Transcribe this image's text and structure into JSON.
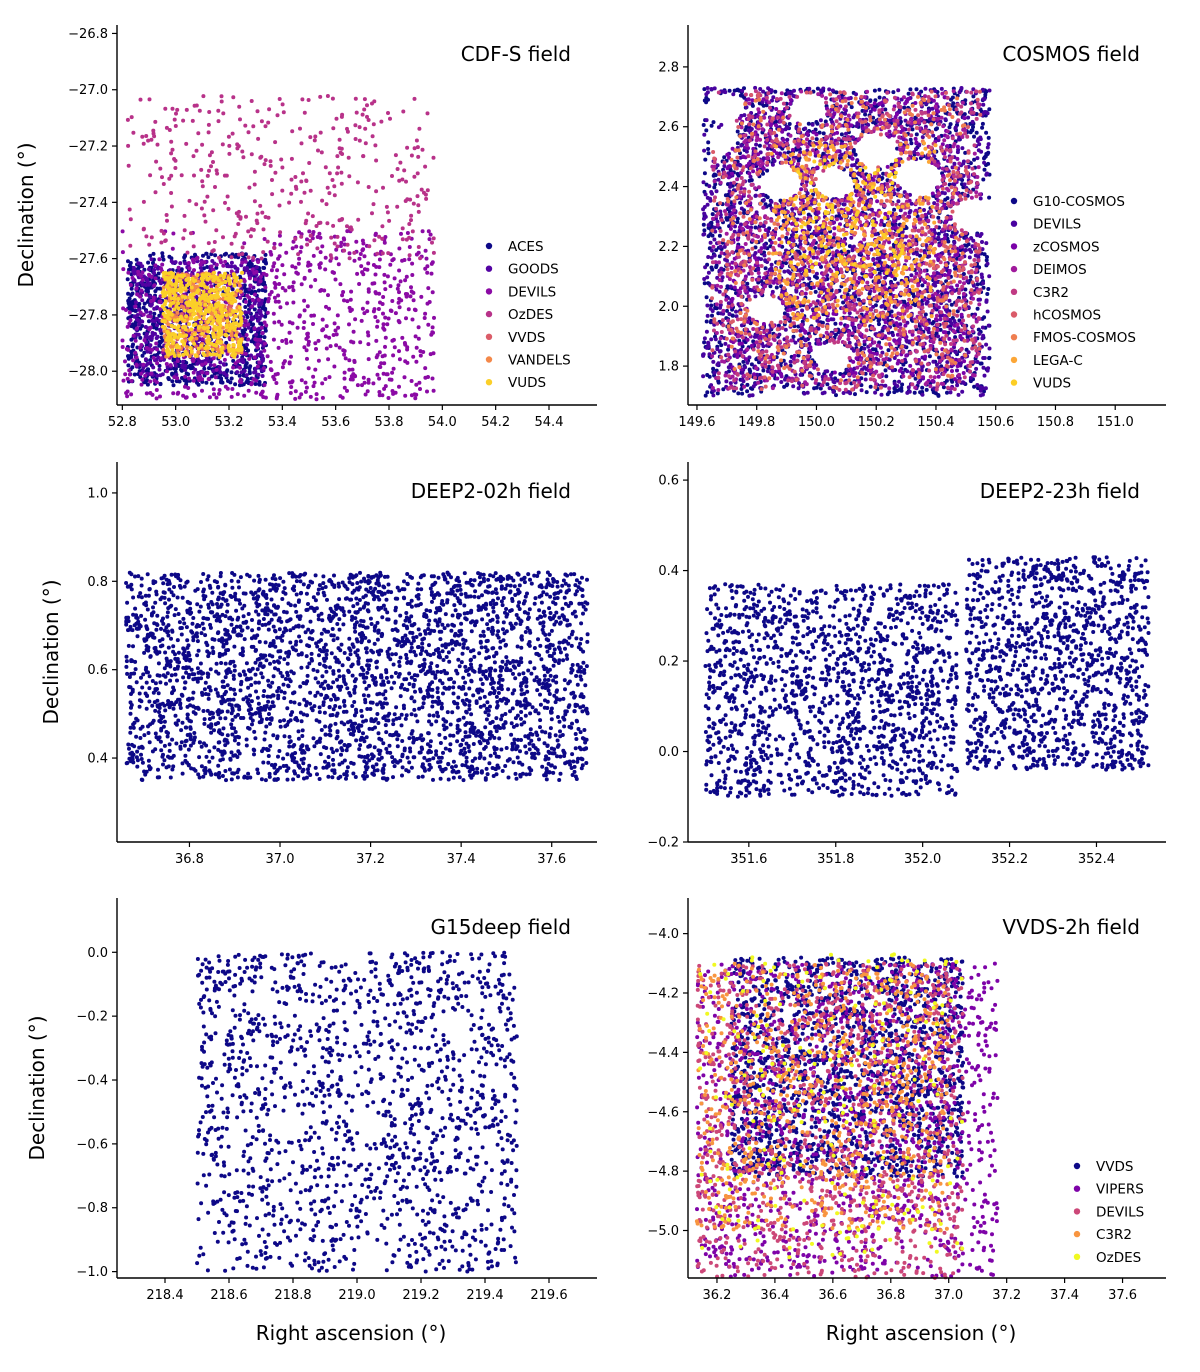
{
  "colors": {
    "plasma": [
      "#0d0887",
      "#46039f",
      "#7201a8",
      "#9c179e",
      "#bd3786",
      "#d8576b",
      "#ed7953",
      "#fb9f3a",
      "#fdca26"
    ]
  },
  "chart_data": [
    {
      "type": "scatter",
      "title": "CDF-S field",
      "xlabel": "",
      "ylabel": "Declination (°)",
      "xlim": [
        52.78,
        54.58
      ],
      "ylim": [
        -28.12,
        -26.77
      ],
      "xticks": [
        "52.8",
        "53.0",
        "53.2",
        "53.4",
        "53.6",
        "53.8",
        "54.0",
        "54.2",
        "54.4"
      ],
      "yticks": [
        "−26.8",
        "−27.0",
        "−27.2",
        "−27.4",
        "−27.6",
        "−27.8",
        "−28.0"
      ],
      "legend_position": "lower-right",
      "series": [
        {
          "name": "ACES",
          "color": "#0d0887",
          "region": [
            52.82,
            53.34,
            -28.05,
            -27.58
          ],
          "npoints": 700,
          "note": "dense ring around the core square"
        },
        {
          "name": "GOODS",
          "color": "#5302a3",
          "region": [
            52.84,
            53.33,
            -28.02,
            -27.6
          ],
          "npoints": 500
        },
        {
          "name": "DEVILS",
          "color": "#8b0aa5",
          "region": [
            52.8,
            53.97,
            -28.1,
            -27.5
          ],
          "npoints": 800
        },
        {
          "name": "OzDES",
          "color": "#b83289",
          "region": [
            52.82,
            53.97,
            -27.6,
            -27.02
          ],
          "npoints": 380
        },
        {
          "name": "VVDS",
          "color": "#db5c68",
          "region": [
            52.95,
            53.25,
            -27.95,
            -27.65
          ],
          "npoints": 80
        },
        {
          "name": "VANDELS",
          "color": "#f48849",
          "region": [
            52.95,
            53.25,
            -27.95,
            -27.65
          ],
          "npoints": 250
        },
        {
          "name": "VUDS",
          "color": "#fbcf28",
          "region": [
            52.95,
            53.25,
            -27.95,
            -27.65
          ],
          "npoints": 450
        }
      ]
    },
    {
      "type": "scatter",
      "title": "COSMOS field",
      "xlabel": "",
      "ylabel": "",
      "xlim": [
        149.57,
        151.17
      ],
      "ylim": [
        1.67,
        2.94
      ],
      "xticks": [
        "149.6",
        "149.8",
        "150.0",
        "150.2",
        "150.4",
        "150.6",
        "150.8",
        "151.0"
      ],
      "yticks": [
        "2.8",
        "2.6",
        "2.4",
        "2.2",
        "2.0",
        "1.8"
      ],
      "legend_position": "right",
      "series": [
        {
          "name": "G10-COSMOS",
          "color": "#0d0887",
          "region": [
            149.62,
            150.58,
            1.7,
            2.73
          ],
          "npoints": 1600
        },
        {
          "name": "DEVILS",
          "color": "#4903a0",
          "region": [
            149.62,
            150.58,
            1.7,
            2.73
          ],
          "npoints": 1400
        },
        {
          "name": "zCOSMOS",
          "color": "#7a02a8",
          "region": [
            149.7,
            150.5,
            1.75,
            2.7
          ],
          "npoints": 700
        },
        {
          "name": "DEIMOS",
          "color": "#a01a9c",
          "region": [
            149.65,
            150.55,
            1.72,
            2.72
          ],
          "npoints": 600
        },
        {
          "name": "C3R2",
          "color": "#c03a83",
          "region": [
            149.65,
            150.55,
            1.72,
            2.72
          ],
          "npoints": 700
        },
        {
          "name": "hCOSMOS",
          "color": "#da5b69",
          "region": [
            149.65,
            150.55,
            1.72,
            2.72
          ],
          "npoints": 450
        },
        {
          "name": "FMOS-COSMOS",
          "color": "#ef7e50",
          "region": [
            149.7,
            150.5,
            1.75,
            2.7
          ],
          "npoints": 350
        },
        {
          "name": "LEGA-C",
          "color": "#fca636",
          "region": [
            149.85,
            150.4,
            1.95,
            2.55
          ],
          "npoints": 350
        },
        {
          "name": "VUDS",
          "color": "#fcce25",
          "region": [
            149.9,
            150.3,
            2.1,
            2.5
          ],
          "npoints": 120
        }
      ]
    },
    {
      "type": "scatter",
      "title": "DEEP2-02h field",
      "xlabel": "",
      "ylabel": "Declination (°)",
      "xlim": [
        36.64,
        37.7
      ],
      "ylim": [
        0.21,
        1.07
      ],
      "xticks": [
        "36.8",
        "37.0",
        "37.2",
        "37.4",
        "37.6"
      ],
      "yticks": [
        "1.0",
        "0.8",
        "0.6",
        "0.4"
      ],
      "series": [
        {
          "color": "#0d0887",
          "region": [
            36.66,
            37.68,
            0.35,
            0.82
          ],
          "npoints": 3200
        }
      ]
    },
    {
      "type": "scatter",
      "title": "DEEP2-23h field",
      "xlabel": "",
      "ylabel": "",
      "xlim": [
        351.46,
        352.56
      ],
      "ylim": [
        -0.2,
        0.64
      ],
      "xticks": [
        "351.6",
        "351.8",
        "352.0",
        "352.2",
        "352.4"
      ],
      "yticks": [
        "0.6",
        "0.4",
        "0.2",
        "0.0",
        "−0.2"
      ],
      "series": [
        {
          "color": "#0d0887",
          "region": [
            351.5,
            352.08,
            -0.1,
            0.37
          ],
          "npoints": 1500
        },
        {
          "color": "#0d0887",
          "region": [
            352.1,
            352.52,
            -0.04,
            0.43
          ],
          "npoints": 1200
        }
      ]
    },
    {
      "type": "scatter",
      "title": "G15deep field",
      "xlabel": "Right ascension (°)",
      "ylabel": "Declination (°)",
      "xlim": [
        218.25,
        219.75
      ],
      "ylim": [
        -1.02,
        0.17
      ],
      "xticks": [
        "218.4",
        "218.6",
        "218.8",
        "219.0",
        "219.2",
        "219.4",
        "219.6"
      ],
      "yticks": [
        "0.0",
        "−0.2",
        "−0.4",
        "−0.6",
        "−0.8",
        "−1.0"
      ],
      "series": [
        {
          "color": "#0d0887",
          "region": [
            218.5,
            219.5,
            -1.0,
            0.0
          ],
          "npoints": 1500
        }
      ]
    },
    {
      "type": "scatter",
      "title": "VVDS-2h field",
      "xlabel": "Right ascension (°)",
      "ylabel": "",
      "xlim": [
        36.1,
        37.75
      ],
      "ylim": [
        -5.16,
        -3.88
      ],
      "xticks": [
        "36.2",
        "36.4",
        "36.6",
        "36.8",
        "37.0",
        "37.2",
        "37.4",
        "37.6"
      ],
      "yticks": [
        "−4.0",
        "−4.2",
        "−4.4",
        "−4.6",
        "−4.8",
        "−5.0"
      ],
      "legend_position": "lower-right",
      "series": [
        {
          "name": "VVDS",
          "color": "#0d0887",
          "region": [
            36.25,
            37.05,
            -4.82,
            -4.08
          ],
          "npoints": 1700
        },
        {
          "name": "VIPERS",
          "color": "#7e03a8",
          "region": [
            36.13,
            37.17,
            -5.16,
            -4.1
          ],
          "npoints": 1300
        },
        {
          "name": "DEVILS",
          "color": "#cc4778",
          "region": [
            36.13,
            37.05,
            -5.16,
            -4.1
          ],
          "npoints": 1100
        },
        {
          "name": "C3R2",
          "color": "#f89540",
          "region": [
            36.13,
            37.0,
            -5.0,
            -4.1
          ],
          "npoints": 700
        },
        {
          "name": "OzDES",
          "color": "#f0f921",
          "region": [
            36.13,
            37.05,
            -5.1,
            -4.07
          ],
          "npoints": 220
        }
      ]
    }
  ]
}
